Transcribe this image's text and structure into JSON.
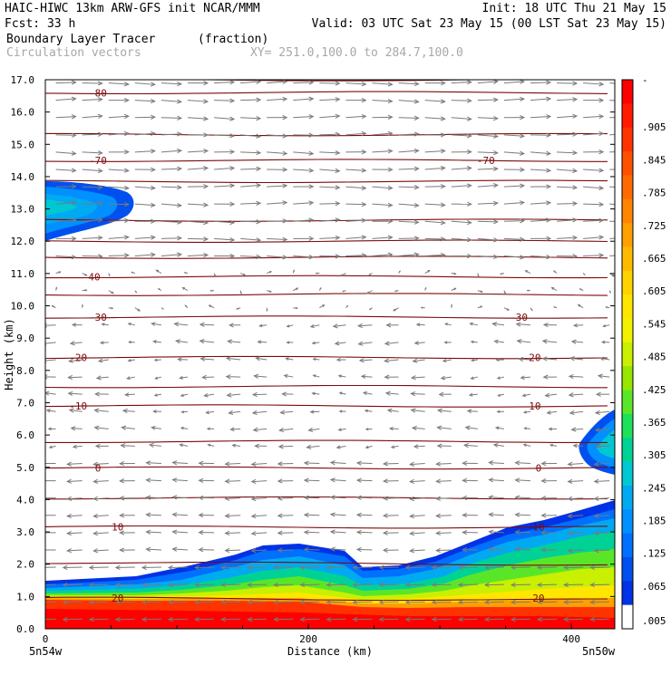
{
  "header": {
    "left_line1": "HAIC-HIWC 13km ARW-GFS init   NCAR/MMM",
    "left_line2": "Fcst:   33 h",
    "right_line1": "Init: 18 UTC Thu 21 May 15",
    "right_line2": "Valid: 03 UTC Sat 23 May 15 (00 LST Sat 23 May 15)",
    "field_name": "Boundary Layer Tracer",
    "field_units": "(fraction)",
    "vector_label": "Circulation vectors",
    "cross_section": "XY= 251.0,100.0 to 284.7,100.0"
  },
  "chart_data": {
    "type": "heatmap",
    "title": "Boundary Layer Tracer",
    "xlabel": "Distance (km)",
    "ylabel": "Height (km)",
    "xlim": [
      0,
      433
    ],
    "ylim": [
      0,
      17
    ],
    "x_ticks": [
      {
        "value": 0,
        "label": "0"
      },
      {
        "value": 200,
        "label": "200"
      },
      {
        "value": 400,
        "label": "400"
      }
    ],
    "y_ticks": [
      "0.0",
      "1.0",
      "2.0",
      "3.0",
      "4.0",
      "5.0",
      "6.0",
      "7.0",
      "8.0",
      "9.0",
      "10.0",
      "11.0",
      "12.0",
      "13.0",
      "14.0",
      "15.0",
      "16.0",
      "17.0"
    ],
    "x_end_labels": {
      "left": "5n54w",
      "right": "5n50w"
    },
    "colorbar": {
      "labels": [
        "-",
        ".905",
        ".845",
        ".785",
        ".725",
        ".665",
        ".605",
        ".545",
        ".485",
        ".425",
        ".365",
        ".305",
        ".245",
        ".185",
        ".125",
        ".065",
        ".005"
      ],
      "colors": [
        "#ff0000",
        "#ff1a00",
        "#ff3300",
        "#ff5000",
        "#ff6a00",
        "#ff8400",
        "#ff9f00",
        "#ffba00",
        "#ffd200",
        "#ffe600",
        "#f2f200",
        "#c8f000",
        "#96e600",
        "#5ae628",
        "#1ee15a",
        "#00d296",
        "#00c8d2",
        "#00aaf0",
        "#0090ff",
        "#0070ff",
        "#0050f0",
        "#0032e6",
        "#ffffff"
      ]
    },
    "temperature_contours": [
      {
        "value": "-80",
        "height": 16.6
      },
      {
        "value": "-70",
        "height": 14.5
      },
      {
        "value": "-40",
        "height": 10.9
      },
      {
        "value": "-30",
        "height": 9.65
      },
      {
        "value": "-20",
        "height": 8.4
      },
      {
        "value": "-10",
        "height": 6.9
      },
      {
        "value": "0",
        "height": 4.98
      },
      {
        "value": "10",
        "height": 3.15
      },
      {
        "value": "20",
        "height": 0.95
      }
    ],
    "contour_label_positions": [
      {
        "value": "-80",
        "x": 40,
        "height": 16.6
      },
      {
        "value": "-70",
        "x": 40,
        "height": 14.5
      },
      {
        "value": "-70",
        "x": 335,
        "height": 14.5
      },
      {
        "value": "-40",
        "x": 35,
        "height": 10.9
      },
      {
        "value": "-30",
        "x": 40,
        "height": 9.65
      },
      {
        "value": "-30",
        "x": 360,
        "height": 9.65
      },
      {
        "value": "-20",
        "x": 25,
        "height": 8.4
      },
      {
        "value": "-20",
        "x": 370,
        "height": 8.4
      },
      {
        "value": "-10",
        "x": 25,
        "height": 6.9
      },
      {
        "value": "-10",
        "x": 370,
        "height": 6.9
      },
      {
        "value": "0",
        "x": 40,
        "height": 4.98
      },
      {
        "value": "0",
        "x": 375,
        "height": 4.98
      },
      {
        "value": "10",
        "x": 55,
        "height": 3.15
      },
      {
        "value": "10",
        "x": 375,
        "height": 3.15
      },
      {
        "value": "20",
        "x": 55,
        "height": 0.95
      },
      {
        "value": "20",
        "x": 375,
        "height": 0.95
      }
    ],
    "tracer_regions": [
      {
        "name": "upper-left plume",
        "x_range": [
          0,
          75
        ],
        "height_range": [
          12.0,
          13.9
        ],
        "max_fraction": 0.3
      },
      {
        "name": "mid-right plume",
        "x_range": [
          415,
          433
        ],
        "height_range": [
          4.8,
          6.9
        ],
        "max_fraction": 0.25
      },
      {
        "name": "boundary layer",
        "x_range": [
          0,
          433
        ],
        "height_range": [
          0,
          3.9
        ],
        "max_fraction": 1.0
      }
    ],
    "grid": false,
    "legend": "colorbar right"
  }
}
